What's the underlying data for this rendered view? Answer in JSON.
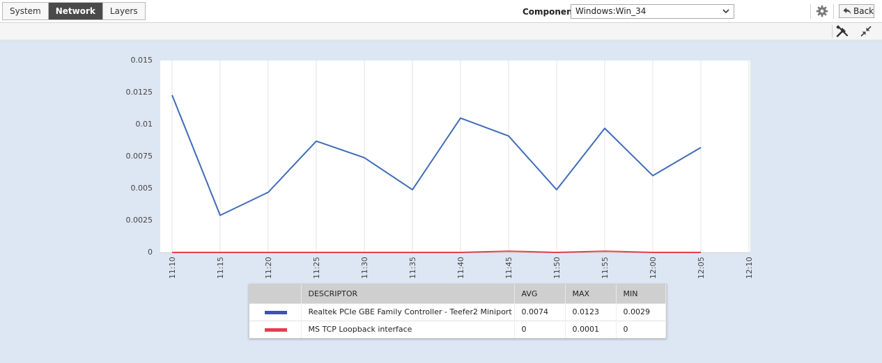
{
  "tabs": [
    {
      "label": "System",
      "active": false
    },
    {
      "label": "Network",
      "active": true
    },
    {
      "label": "Layers",
      "active": false
    }
  ],
  "component": {
    "label": "Component",
    "value": "Windows:Win_34"
  },
  "back_label": "Back",
  "icons": {
    "settings": "gear-icon",
    "back": "back-arrow-icon",
    "tools": "tools-icon",
    "collapse": "collapse-icon",
    "dropdown": "chevron-down-icon"
  },
  "colors": {
    "series1": "#3f6bb8",
    "series2": "#e53e4f",
    "active_tab": "#4a4a4a",
    "legend_series1": "#3f4fbf",
    "legend_series2": "#e53e4f"
  },
  "chart_data": {
    "type": "line",
    "x": [
      "11:10",
      "11:15",
      "11:20",
      "11:25",
      "11:30",
      "11:35",
      "11:40",
      "11:45",
      "11:50",
      "11:55",
      "12:00",
      "12:05"
    ],
    "xticks": [
      "11:10",
      "11:15",
      "11:20",
      "11:25",
      "11:30",
      "11:35",
      "11:40",
      "11:45",
      "11:50",
      "11:55",
      "12:00",
      "12:05",
      "12:10"
    ],
    "yticks": [
      "0.015",
      "0.0125",
      "0.01",
      "0.0075",
      "0.005",
      "0.0025",
      "0"
    ],
    "ylim": [
      0,
      0.015
    ],
    "grid": true,
    "series": [
      {
        "name": "Realtek PCIe GBE Family Controller - Teefer2 Miniport",
        "values": [
          0.0123,
          0.0029,
          0.0047,
          0.0087,
          0.0074,
          0.0049,
          0.0105,
          0.0091,
          0.0049,
          0.0097,
          0.006,
          0.0082
        ]
      },
      {
        "name": "MS TCP Loopback interface",
        "values": [
          0,
          0,
          0,
          0,
          0,
          0,
          0,
          0.0001,
          0,
          0.0001,
          0,
          0
        ]
      }
    ]
  },
  "legend": {
    "headers": [
      "",
      "DESCRIPTOR",
      "AVG",
      "MAX",
      "MIN"
    ],
    "rows": [
      {
        "descriptor": "Realtek PCIe GBE Family Controller - Teefer2 Miniport",
        "avg": "0.0074",
        "max": "0.0123",
        "min": "0.0029"
      },
      {
        "descriptor": "MS TCP Loopback interface",
        "avg": "0",
        "max": "0.0001",
        "min": "0"
      }
    ]
  }
}
